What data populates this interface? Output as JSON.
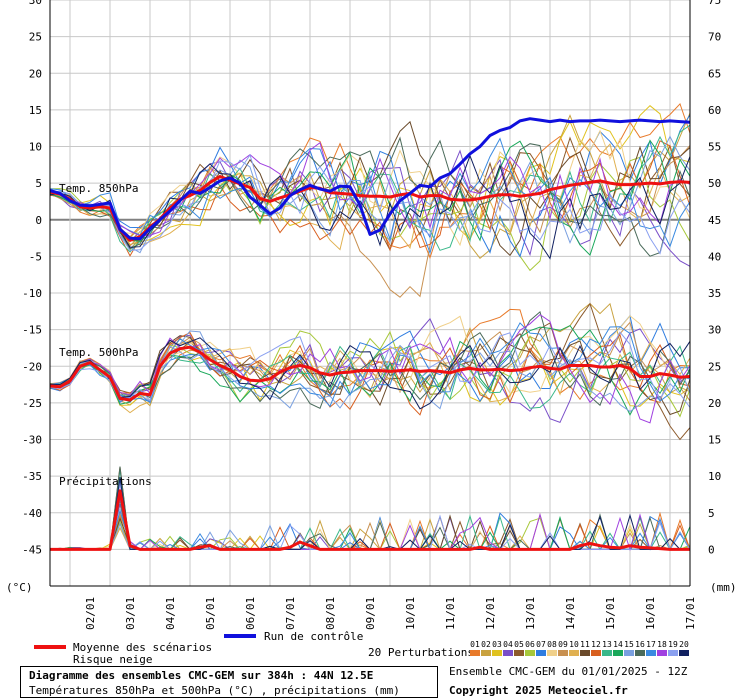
{
  "chart_data": {
    "type": "line",
    "title": "Diagramme des ensembles CMC-GEM sur 384h : 44N 12.5E",
    "subtitle": "Températures 850hPa et 500hPa (°C) , précipitations (mm)",
    "left_axis_unit": "(°C)",
    "right_axis_unit": "(mm)",
    "ylim_left": [
      -50,
      30
    ],
    "ylim_right": [
      -5,
      75
    ],
    "left_ticks": [
      30,
      25,
      20,
      15,
      10,
      5,
      0,
      -5,
      -10,
      -15,
      -20,
      -25,
      -30,
      -35,
      -40,
      -45
    ],
    "right_ticks": [
      75,
      70,
      65,
      60,
      55,
      50,
      45,
      40,
      35,
      30,
      25,
      20,
      15,
      10,
      5,
      0
    ],
    "x_ticks": [
      "02/01",
      "03/01",
      "04/01",
      "05/01",
      "06/01",
      "07/01",
      "08/01",
      "09/01",
      "10/01",
      "11/01",
      "12/01",
      "13/01",
      "14/01",
      "15/01",
      "16/01",
      "17/01"
    ],
    "grid": true,
    "panel_labels": {
      "t850": "Temp. 850hPa",
      "t500": "Temp. 500hPa",
      "precip": "Précipitations"
    },
    "x_hours": [
      0,
      6,
      12,
      18,
      24,
      30,
      36,
      42,
      48,
      54,
      60,
      66,
      72,
      78,
      84,
      90,
      96,
      102,
      108,
      114,
      120,
      126,
      132,
      138,
      144,
      150,
      156,
      162,
      168,
      174,
      180,
      186,
      192,
      198,
      204,
      210,
      216,
      222,
      228,
      234,
      240,
      246,
      252,
      258,
      264,
      270,
      276,
      282,
      288,
      294,
      300,
      306,
      312,
      318,
      324,
      330,
      336,
      342,
      348,
      354,
      360,
      366,
      372,
      378,
      384
    ],
    "series": [
      {
        "name": "Moyenne des scénarios",
        "panel": "t850",
        "values": [
          3.8,
          3.5,
          2.8,
          1.8,
          1.6,
          1.8,
          1.6,
          -1.4,
          -2.8,
          -2.3,
          -1.0,
          0.1,
          1.6,
          2.8,
          3.3,
          4.0,
          5.1,
          5.9,
          5.4,
          4.9,
          4.4,
          2.9,
          2.5,
          3.0,
          3.4,
          3.9,
          4.4,
          4.3,
          3.7,
          3.6,
          3.5,
          3.3,
          3.2,
          3.2,
          3.1,
          3.4,
          3.6,
          3.1,
          3.3,
          3.3,
          2.8,
          2.7,
          2.7,
          2.9,
          3.2,
          3.4,
          3.4,
          3.2,
          3.4,
          3.6,
          4.1,
          4.4,
          4.7,
          4.9,
          5.1,
          5.3,
          5.0,
          4.8,
          4.8,
          4.9,
          5.0,
          4.9,
          5.1,
          5.2,
          5.1
        ]
      },
      {
        "name": "Run de contrôle",
        "panel": "t850",
        "values": [
          4.0,
          3.6,
          2.6,
          2.0,
          1.9,
          2.1,
          2.3,
          -1.3,
          -2.5,
          -2.6,
          -1.2,
          0.0,
          1.2,
          2.6,
          3.9,
          3.6,
          4.4,
          5.3,
          5.7,
          5.0,
          3.1,
          2.0,
          0.8,
          1.6,
          3.3,
          4.1,
          4.7,
          4.2,
          3.9,
          4.6,
          4.5,
          2.0,
          -2.0,
          -1.4,
          0.8,
          2.6,
          3.6,
          4.7,
          4.5,
          5.7,
          6.3,
          7.6,
          9.0,
          10.0,
          11.5,
          12.2,
          12.6,
          13.5,
          13.8,
          13.6,
          13.4,
          13.6,
          13.4,
          13.5,
          13.5,
          13.6,
          13.5,
          13.4,
          13.5,
          13.6,
          13.5,
          13.4,
          13.5,
          13.4,
          13.3
        ]
      },
      {
        "name": "Moyenne des scénarios",
        "panel": "t500",
        "values": [
          -22.7,
          -22.8,
          -22.0,
          -20.0,
          -19.5,
          -20.5,
          -21.5,
          -24.4,
          -24.6,
          -23.7,
          -23.9,
          -20.0,
          -18.2,
          -17.6,
          -17.4,
          -18.1,
          -19.1,
          -19.9,
          -20.5,
          -21.4,
          -21.9,
          -22.0,
          -21.7,
          -20.8,
          -20.2,
          -19.9,
          -20.2,
          -20.9,
          -21.2,
          -20.9,
          -20.8,
          -20.6,
          -20.6,
          -20.6,
          -20.7,
          -20.6,
          -20.5,
          -20.7,
          -20.6,
          -20.7,
          -20.9,
          -20.5,
          -20.3,
          -20.5,
          -20.5,
          -20.4,
          -20.6,
          -20.5,
          -20.2,
          -20.0,
          -20.3,
          -20.4,
          -19.9,
          -19.9,
          -19.9,
          -20.1,
          -20.1,
          -19.9,
          -20.3,
          -21.4,
          -21.4,
          -21.0,
          -21.2,
          -21.5,
          -21.4
        ]
      },
      {
        "name": "Moyenne des scénarios",
        "panel": "precip",
        "values": [
          0.0,
          0.0,
          0.0,
          0.0,
          0.0,
          0.0,
          0.0,
          8.0,
          0.5,
          0.0,
          0.0,
          0.0,
          0.0,
          0.0,
          0.0,
          0.3,
          0.5,
          0.0,
          0.0,
          0.0,
          0.0,
          0.0,
          0.0,
          0.0,
          0.3,
          1.0,
          0.5,
          0.0,
          0.0,
          0.0,
          0.0,
          0.0,
          0.0,
          0.0,
          0.0,
          0.0,
          0.0,
          0.0,
          0.0,
          0.0,
          0.0,
          0.0,
          0.0,
          0.3,
          0.0,
          0.0,
          0.0,
          0.0,
          0.0,
          0.0,
          0.0,
          0.0,
          0.0,
          0.5,
          0.8,
          0.5,
          0.3,
          0.2,
          0.5,
          0.3,
          0.2,
          0.1,
          0.0,
          0.0,
          0.0
        ]
      }
    ],
    "perturbation_colors": [
      "#e87a2a",
      "#c9a23f",
      "#e0c21f",
      "#7a4fc9",
      "#8c5a2b",
      "#a7c83a",
      "#2f7de0",
      "#f0d08a",
      "#c89050",
      "#e0b050",
      "#6a4a2a",
      "#d85f1f",
      "#3ab88a",
      "#19a85a",
      "#7aa0e0",
      "#4a6a5a",
      "#3a8ae0",
      "#a040e0",
      "#8aa0f0",
      "#102060"
    ],
    "legend": {
      "mean_label": "Moyenne des scénarios",
      "control_label": "Run de contrôle",
      "snow_label": "Risque neige",
      "perturbations_label": "20 Perturbations",
      "perturbation_numbers": [
        "01",
        "02",
        "03",
        "04",
        "05",
        "06",
        "07",
        "08",
        "09",
        "10",
        "11",
        "12",
        "13",
        "14",
        "15",
        "16",
        "17",
        "18",
        "19",
        "20"
      ],
      "mean_color": "#ee1111",
      "control_color": "#1010dd"
    }
  },
  "footer": {
    "title": "Diagramme des ensembles CMC-GEM sur 384h : 44N 12.5E",
    "subtitle": "Températures 850hPa et 500hPa (°C) , précipitations (mm)",
    "ensemble_info": "Ensemble CMC-GEM du 01/01/2025 - 12Z",
    "copyright": "Copyright 2025 Meteociel.fr"
  }
}
